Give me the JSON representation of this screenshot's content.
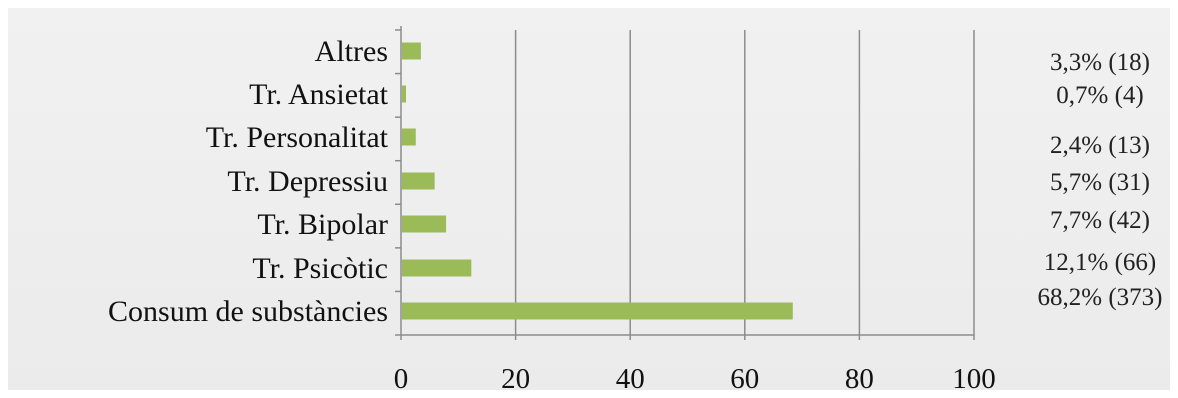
{
  "chart_data": {
    "type": "bar",
    "orientation": "horizontal",
    "categories": [
      "Altres",
      "Tr. Ansietat",
      "Tr. Personalitat",
      "Tr. Depressiu",
      "Tr. Bipolar",
      "Tr. Psicòtic",
      "Consum de substàncies"
    ],
    "values": [
      3.3,
      0.7,
      2.4,
      5.7,
      7.7,
      12.1,
      68.2
    ],
    "value_labels": [
      "3,3% (18)",
      "0,7% (4)",
      "2,4% (13)",
      "5,7% (31)",
      "7,7% (42)",
      "12,1% (66)",
      "68,2% (373)"
    ],
    "xlim": [
      0,
      100
    ],
    "x_ticks": [
      0,
      20,
      40,
      60,
      80,
      100
    ],
    "x_tick_labels": [
      "0",
      "20",
      "40",
      "60",
      "80",
      "100"
    ],
    "title": "",
    "xlabel": "",
    "ylabel": "",
    "grid": "vertical",
    "legend": "none",
    "bar_color": "#9bbb59",
    "grid_color": "#8c8c8c"
  }
}
